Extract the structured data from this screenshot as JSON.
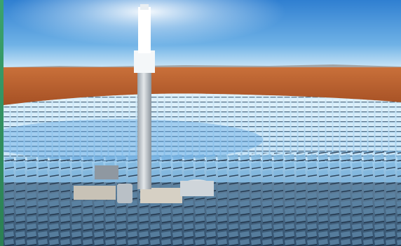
{
  "scene": {
    "subject": "solar-thermal-power-tower",
    "colors": {
      "sky_top": "#2f7fd1",
      "sky_horizon": "#cfe8f8",
      "desert": "#b15a2b",
      "desert_far": "#c9703a",
      "mirror_light": "#d9effa",
      "mirror_mid": "#8cc4ea",
      "mirror_dark": "#2b4c6b",
      "tower": "#c9ced3",
      "frame_green": "#2f8f5e"
    }
  }
}
